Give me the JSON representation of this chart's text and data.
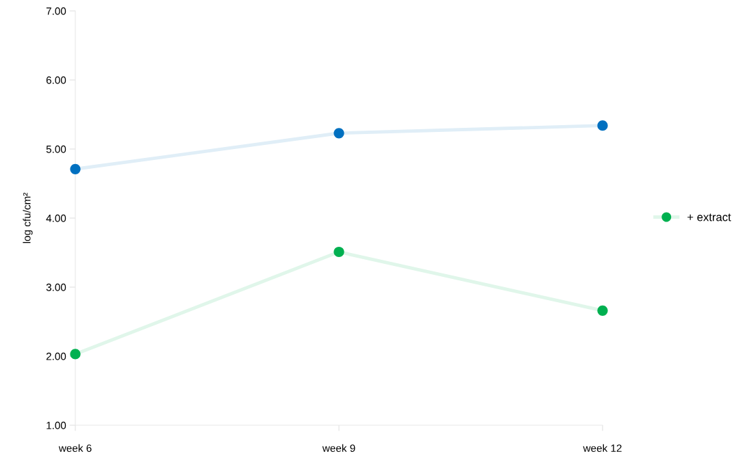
{
  "chart_data": {
    "type": "line",
    "ylabel": "log cfu/cm²",
    "categories": [
      "week 6",
      "week 9",
      "week 12"
    ],
    "series": [
      {
        "color": "#0070c0",
        "values": [
          4.71,
          5.23,
          5.34
        ]
      },
      {
        "name": "+ extract",
        "color": "#00b050",
        "values": [
          2.03,
          3.51,
          2.66
        ]
      }
    ],
    "ylim": [
      1,
      7
    ],
    "yticks": [
      {
        "value": 1,
        "label": "1.00"
      },
      {
        "value": 2,
        "label": "2.00"
      },
      {
        "value": 3,
        "label": "3.00"
      },
      {
        "value": 4,
        "label": "4.00"
      },
      {
        "value": 5,
        "label": "5.00"
      },
      {
        "value": 6,
        "label": "6.00"
      },
      {
        "value": 7,
        "label": "7.00"
      }
    ],
    "marker": "circle",
    "line_style": "solid",
    "grid": false,
    "legend": "right"
  }
}
